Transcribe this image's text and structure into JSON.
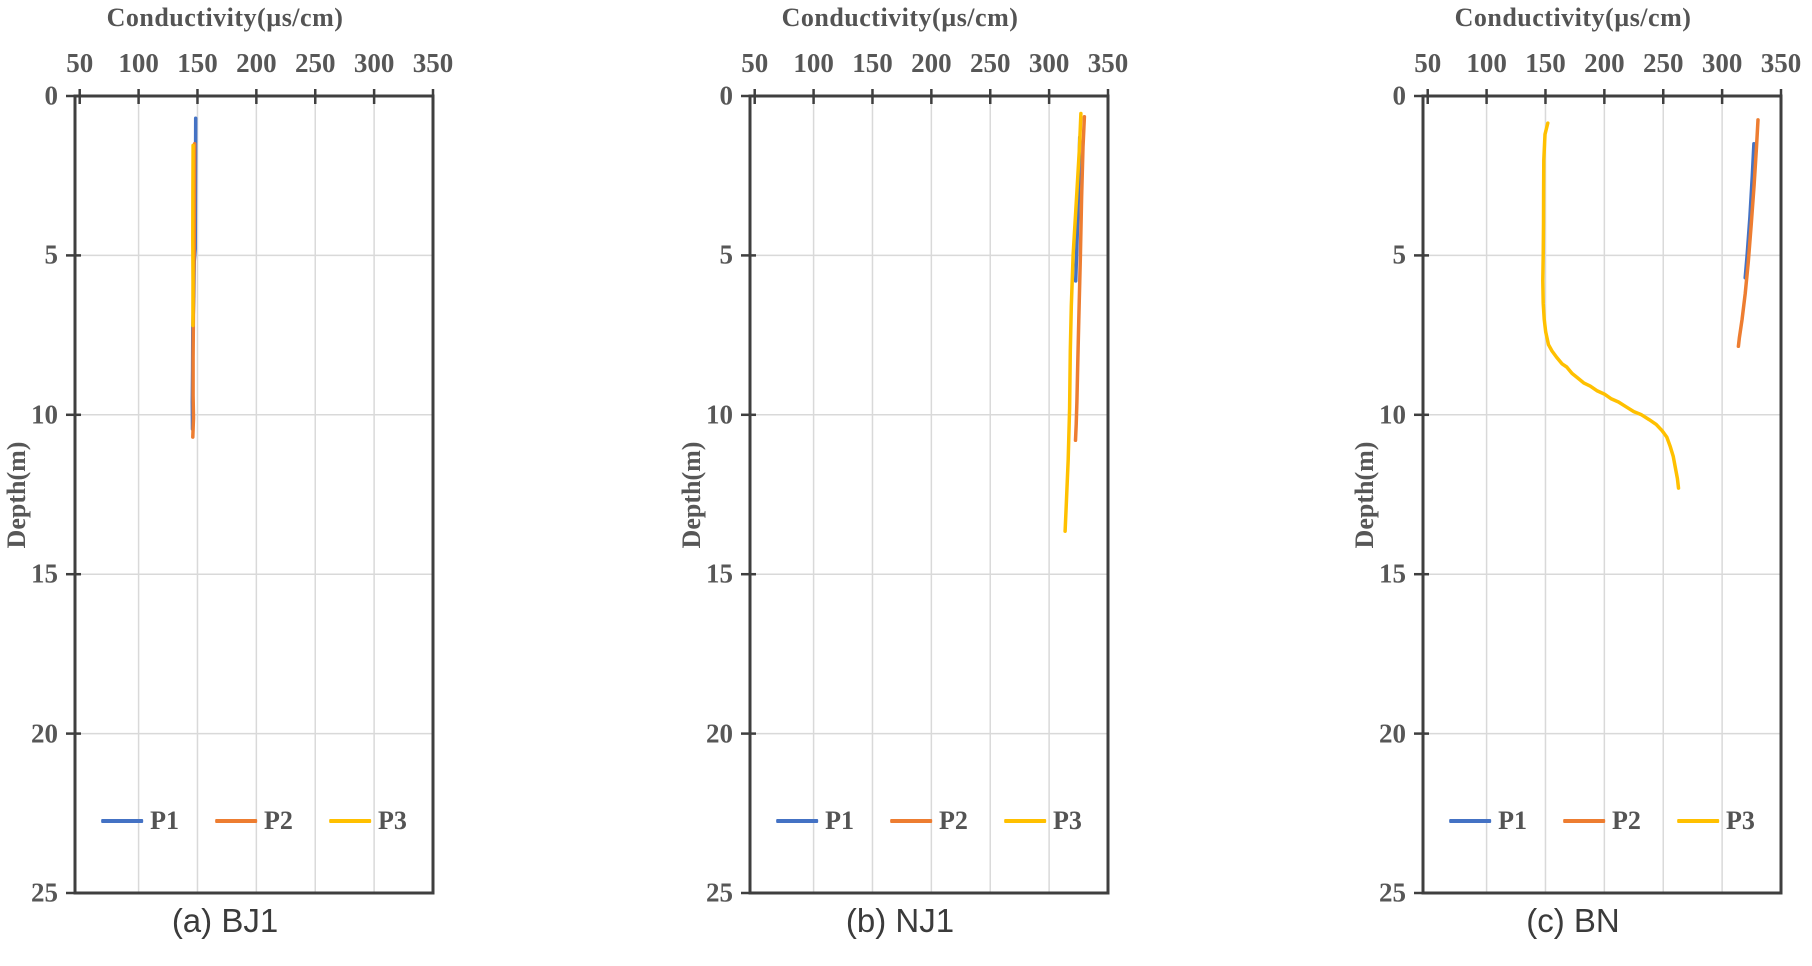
{
  "figure_colors": {
    "series": {
      "P1": "#4472C4",
      "P2": "#ED7D31",
      "P3": "#FFC000"
    },
    "axis": "#3F3F3F",
    "grid": "#D9D9D9",
    "tick_text": "#575757",
    "caption_text": "#3B3B3B"
  },
  "chart_data": [
    {
      "type": "line",
      "title": "Conductivity(µs/cm)",
      "caption": "(a) BJ1",
      "x_axis": {
        "label": "Conductivity(µs/cm)",
        "range": [
          50,
          350
        ],
        "ticks": [
          50,
          100,
          150,
          200,
          250,
          300,
          350
        ],
        "position": "top"
      },
      "y_axis": {
        "label": "Depth(m)",
        "range": [
          0,
          25
        ],
        "ticks": [
          0,
          5,
          10,
          15,
          20,
          25
        ],
        "direction": "down"
      },
      "grid": true,
      "legend_position": "inside-bottom",
      "series": [
        {
          "name": "P1",
          "color": "#4472C4",
          "points": [
            [
              148.5,
              0.7
            ],
            [
              148.4,
              1.8
            ],
            [
              148.2,
              3.2
            ],
            [
              148.1,
              4.8
            ],
            [
              147.2,
              5.2
            ],
            [
              146.9,
              6.3
            ],
            [
              146.0,
              7.3
            ],
            [
              145.9,
              8.6
            ],
            [
              145.6,
              9.6
            ],
            [
              145.8,
              10.45
            ]
          ]
        },
        {
          "name": "P2",
          "color": "#ED7D31",
          "points": [
            [
              147.6,
              1.5
            ],
            [
              147.4,
              3.2
            ],
            [
              147.2,
              4.9
            ],
            [
              146.8,
              5.6
            ],
            [
              146.5,
              7.0
            ],
            [
              146.3,
              8.2
            ],
            [
              146.3,
              9.4
            ],
            [
              146.6,
              10.1
            ],
            [
              146.0,
              10.7
            ]
          ]
        },
        {
          "name": "P3",
          "color": "#FFC000",
          "points": [
            [
              146.3,
              1.55
            ],
            [
              146.1,
              3.0
            ],
            [
              146.0,
              4.5
            ],
            [
              146.2,
              5.8
            ],
            [
              146.1,
              7.2
            ]
          ]
        }
      ]
    },
    {
      "type": "line",
      "title": "Conductivity(µs/cm)",
      "caption": "(b) NJ1",
      "x_axis": {
        "label": "Conductivity(µs/cm)",
        "range": [
          50,
          350
        ],
        "ticks": [
          50,
          100,
          150,
          200,
          250,
          300,
          350
        ],
        "position": "top"
      },
      "y_axis": {
        "label": "Depth(m)",
        "range": [
          0,
          25
        ],
        "ticks": [
          0,
          5,
          10,
          15,
          20,
          25
        ],
        "direction": "down"
      },
      "grid": true,
      "legend_position": "inside-bottom",
      "series": [
        {
          "name": "P1",
          "color": "#4472C4",
          "points": [
            [
              326.0,
              1.3
            ],
            [
              325.3,
              2.6
            ],
            [
              324.0,
              4.2
            ],
            [
              322.6,
              5.8
            ]
          ]
        },
        {
          "name": "P2",
          "color": "#ED7D31",
          "points": [
            [
              330.0,
              0.65
            ],
            [
              328.8,
              1.6
            ],
            [
              327.6,
              3.2
            ],
            [
              326.6,
              5.0
            ],
            [
              325.2,
              7.0
            ],
            [
              324.2,
              8.6
            ],
            [
              323.6,
              9.6
            ],
            [
              323.0,
              10.3
            ],
            [
              322.4,
              10.8
            ]
          ]
        },
        {
          "name": "P3",
          "color": "#FFC000",
          "points": [
            [
              327.0,
              0.55
            ],
            [
              325.8,
              1.6
            ],
            [
              323.6,
              3.0
            ],
            [
              320.4,
              5.0
            ],
            [
              318.8,
              6.6
            ],
            [
              318.0,
              8.0
            ],
            [
              317.4,
              9.8
            ],
            [
              316.2,
              11.4
            ],
            [
              314.6,
              12.8
            ],
            [
              313.6,
              13.65
            ]
          ]
        }
      ]
    },
    {
      "type": "line",
      "title": "Conductivity(µs/cm)",
      "caption": "(c) BN",
      "x_axis": {
        "label": "Conductivity(µs/cm)",
        "range": [
          50,
          350
        ],
        "ticks": [
          50,
          100,
          150,
          200,
          250,
          300,
          350
        ],
        "position": "top"
      },
      "y_axis": {
        "label": "Depth(m)",
        "range": [
          0,
          25
        ],
        "ticks": [
          0,
          5,
          10,
          15,
          20,
          25
        ],
        "direction": "down"
      },
      "grid": true,
      "legend_position": "inside-bottom",
      "series": [
        {
          "name": "P1",
          "color": "#4472C4",
          "points": [
            [
              327.0,
              1.5
            ],
            [
              325.6,
              2.5
            ],
            [
              323.6,
              3.8
            ],
            [
              321.2,
              5.0
            ],
            [
              319.6,
              5.7
            ]
          ]
        },
        {
          "name": "P2",
          "color": "#ED7D31",
          "points": [
            [
              330.5,
              0.75
            ],
            [
              329.2,
              1.6
            ],
            [
              327.2,
              2.8
            ],
            [
              324.8,
              4.0
            ],
            [
              322.2,
              5.2
            ],
            [
              319.6,
              6.2
            ],
            [
              317.0,
              7.0
            ],
            [
              314.6,
              7.6
            ],
            [
              313.8,
              7.85
            ]
          ]
        },
        {
          "name": "P3",
          "color": "#FFC000",
          "points": [
            [
              152.0,
              0.85
            ],
            [
              149.6,
              1.2
            ],
            [
              148.6,
              2.0
            ],
            [
              148.4,
              3.0
            ],
            [
              148.3,
              4.0
            ],
            [
              148.1,
              5.0
            ],
            [
              147.7,
              5.8
            ],
            [
              148.1,
              6.5
            ],
            [
              148.9,
              7.0
            ],
            [
              150.2,
              7.4
            ],
            [
              152.6,
              7.8
            ],
            [
              155.5,
              8.0
            ],
            [
              159.5,
              8.2
            ],
            [
              164.0,
              8.4
            ],
            [
              168.0,
              8.5
            ],
            [
              172.5,
              8.7
            ],
            [
              177.5,
              8.85
            ],
            [
              182.5,
              9.0
            ],
            [
              188.0,
              9.1
            ],
            [
              194.0,
              9.25
            ],
            [
              200.0,
              9.35
            ],
            [
              206.0,
              9.5
            ],
            [
              212.0,
              9.6
            ],
            [
              218.5,
              9.75
            ],
            [
              225.0,
              9.9
            ],
            [
              231.5,
              10.0
            ],
            [
              238.0,
              10.15
            ],
            [
              244.0,
              10.3
            ],
            [
              249.0,
              10.5
            ],
            [
              253.0,
              10.7
            ],
            [
              256.0,
              11.0
            ],
            [
              258.5,
              11.3
            ],
            [
              260.5,
              11.7
            ],
            [
              262.0,
              12.0
            ],
            [
              263.0,
              12.3
            ]
          ]
        }
      ]
    }
  ]
}
